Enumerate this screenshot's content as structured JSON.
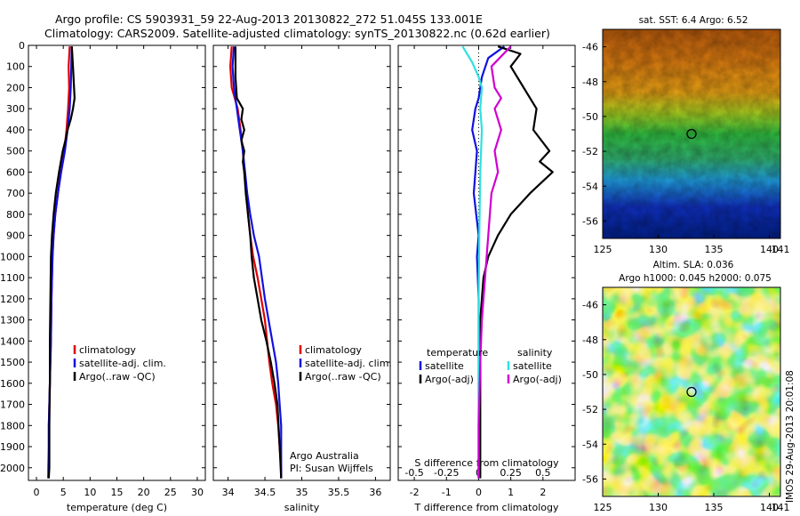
{
  "header": {
    "line1": "Argo profile: CS 5903931_59 22-Aug-2013 20130822_272 51.045S 133.001E",
    "line2": "Climatology: CARS2009. Satellite-adjusted climatology: synTS_20130822.nc (0.62d earlier)"
  },
  "side_stamp": "IMOS 29-Aug-2013 20:01:08",
  "chart_data": [
    {
      "type": "line",
      "id": "temperature",
      "xlabel": "temperature (deg C)",
      "ylabel": "",
      "xlim": [
        -1.5,
        31.5
      ],
      "ylim": [
        2060,
        0
      ],
      "xticks": [
        0,
        5,
        10,
        15,
        20,
        25,
        30
      ],
      "yticks": [
        0,
        100,
        200,
        300,
        400,
        500,
        600,
        700,
        800,
        900,
        1000,
        1100,
        1200,
        1300,
        1400,
        1500,
        1600,
        1700,
        1800,
        1900,
        2000
      ],
      "legend": [
        "climatology",
        "satellite-adj. clim.",
        "Argo(..raw -QC)"
      ],
      "series": [
        {
          "name": "climatology",
          "color": "#e00000",
          "x": [
            6.2,
            6.0,
            6.1,
            5.9,
            5.6,
            5.2,
            4.5,
            4.0,
            3.5,
            3.2,
            3.0,
            2.8,
            2.7,
            2.6,
            2.5,
            2.4,
            2.3,
            2.3,
            2.2,
            2.2
          ],
          "y": [
            5,
            100,
            200,
            300,
            400,
            500,
            600,
            700,
            800,
            900,
            1000,
            1200,
            1400,
            1500,
            1600,
            1700,
            1800,
            1900,
            2000,
            2050
          ]
        },
        {
          "name": "satellite-adj. clim.",
          "color": "#1010e0",
          "x": [
            6.6,
            6.5,
            6.4,
            6.2,
            5.8,
            5.3,
            4.6,
            4.0,
            3.5,
            3.2,
            3.0,
            2.8,
            2.7,
            2.6,
            2.5,
            2.4,
            2.3,
            2.3,
            2.3,
            2.2
          ],
          "y": [
            5,
            100,
            200,
            300,
            400,
            500,
            600,
            700,
            800,
            900,
            1000,
            1200,
            1400,
            1500,
            1600,
            1700,
            1800,
            1900,
            2000,
            2050
          ]
        },
        {
          "name": "Argo(..raw -QC)",
          "color": "#000000",
          "x": [
            6.6,
            6.8,
            7.0,
            7.1,
            6.8,
            6.4,
            5.8,
            5.4,
            4.9,
            4.2,
            3.6,
            3.2,
            2.9,
            2.7,
            2.6,
            2.5,
            2.5,
            2.4,
            2.4,
            2.4,
            2.3
          ],
          "y": [
            5,
            100,
            200,
            250,
            300,
            350,
            400,
            450,
            500,
            600,
            700,
            800,
            900,
            1000,
            1200,
            1400,
            1600,
            1800,
            1900,
            2000,
            2050
          ]
        }
      ]
    },
    {
      "type": "line",
      "id": "salinity",
      "xlabel": "salinity",
      "xlim": [
        33.8,
        36.2
      ],
      "ylim": [
        2060,
        0
      ],
      "xticks": [
        34,
        34.5,
        35,
        35.5,
        36
      ],
      "legend": [
        "climatology",
        "satellite-adj. clim.",
        "Argo(..raw -QC)"
      ],
      "annotation": [
        "Argo Australia",
        "PI: Susan Wijffels"
      ],
      "series": [
        {
          "name": "climatology",
          "color": "#e00000",
          "x": [
            34.05,
            34.03,
            34.05,
            34.13,
            34.17,
            34.2,
            34.22,
            34.25,
            34.27,
            34.3,
            34.34,
            34.4,
            34.5,
            34.56,
            34.6,
            34.65,
            34.68,
            34.7,
            34.72,
            34.72
          ],
          "y": [
            5,
            100,
            200,
            300,
            400,
            500,
            600,
            700,
            800,
            900,
            1000,
            1100,
            1300,
            1500,
            1600,
            1700,
            1800,
            1900,
            2000,
            2050
          ]
        },
        {
          "name": "satellite-adj. clim.",
          "color": "#1010e0",
          "x": [
            34.08,
            34.06,
            34.08,
            34.12,
            34.16,
            34.2,
            34.23,
            34.26,
            34.3,
            34.35,
            34.42,
            34.5,
            34.6,
            34.65,
            34.68,
            34.7,
            34.72,
            34.72
          ],
          "y": [
            5,
            100,
            200,
            300,
            400,
            500,
            600,
            700,
            800,
            900,
            1000,
            1200,
            1400,
            1500,
            1600,
            1700,
            1800,
            2050
          ]
        },
        {
          "name": "Argo(..raw -QC)",
          "color": "#000000",
          "x": [
            34.1,
            34.1,
            34.12,
            34.2,
            34.18,
            34.22,
            34.18,
            34.22,
            34.2,
            34.22,
            34.24,
            34.27,
            34.3,
            34.32,
            34.35,
            34.4,
            34.45,
            34.52,
            34.58,
            34.63,
            34.67,
            34.7,
            34.72
          ],
          "y": [
            5,
            150,
            250,
            300,
            350,
            400,
            450,
            500,
            550,
            600,
            700,
            800,
            900,
            1000,
            1100,
            1200,
            1300,
            1400,
            1500,
            1600,
            1700,
            1900,
            2050
          ]
        }
      ]
    },
    {
      "type": "line",
      "id": "difference",
      "xlabel": "T difference from climatology",
      "xlabel_top": "S difference from climatology",
      "xlim": [
        -2.5,
        3.0
      ],
      "ylim": [
        2060,
        0
      ],
      "xticks": [
        -2,
        -1,
        0,
        1,
        2
      ],
      "xticks_top_labels": [
        "-0.5",
        "-0.25",
        "0",
        "0.25",
        "0.5"
      ],
      "legend_headers": [
        "temperature",
        "salinity"
      ],
      "legend": [
        "satellite",
        "Argo(-adj)",
        "satellite",
        "Argo(-adj)"
      ],
      "series": [
        {
          "name": "temperature satellite",
          "color": "#1010e0",
          "x": [
            0.8,
            0.3,
            0.1,
            0.0,
            -0.1,
            -0.2,
            -0.05,
            -0.1,
            -0.15,
            0.0,
            -0.05,
            0.0,
            0.0,
            0.0,
            0.0,
            0.0
          ],
          "y": [
            5,
            60,
            150,
            250,
            300,
            400,
            500,
            600,
            700,
            900,
            1000,
            1200,
            1400,
            1600,
            1800,
            2050
          ]
        },
        {
          "name": "temperature Argo(-adj)",
          "color": "#000000",
          "x": [
            0.6,
            1.3,
            1.0,
            1.4,
            1.8,
            1.7,
            2.2,
            1.9,
            2.3,
            1.6,
            1.0,
            0.6,
            0.3,
            0.15,
            0.05,
            0.05,
            0.05,
            0.05
          ],
          "y": [
            5,
            40,
            100,
            200,
            300,
            400,
            500,
            550,
            600,
            700,
            800,
            900,
            1000,
            1100,
            1300,
            1500,
            1800,
            2050
          ]
        },
        {
          "name": "salinity satellite",
          "color": "#30e0e0",
          "x": [
            -0.5,
            -0.2,
            0.0,
            0.1,
            0.05,
            0.1,
            0.05,
            0.02,
            0.0,
            0.0,
            0.0
          ],
          "y": [
            5,
            80,
            150,
            200,
            300,
            400,
            600,
            900,
            1200,
            1600,
            2050
          ]
        },
        {
          "name": "salinity Argo(-adj)",
          "color": "#d000d0",
          "x": [
            1.0,
            0.4,
            0.5,
            0.7,
            0.5,
            0.7,
            0.5,
            0.6,
            0.4,
            0.3,
            0.2,
            0.1,
            0.05,
            0.0,
            0.0
          ],
          "y": [
            5,
            100,
            200,
            250,
            300,
            400,
            500,
            600,
            700,
            900,
            1100,
            1300,
            1500,
            1800,
            2050
          ]
        }
      ]
    },
    {
      "type": "heatmap",
      "id": "sst-map",
      "title": "sat. SST: 6.4  Argo: 6.52",
      "xlim": [
        125,
        141
      ],
      "ylim": [
        -57,
        -45
      ],
      "xticks": [
        125,
        130,
        135,
        140
      ],
      "yticks": [
        -46,
        -48,
        -50,
        -52,
        -54,
        -56
      ],
      "marker": {
        "lon": 133.0,
        "lat": -51.0
      }
    },
    {
      "type": "heatmap",
      "id": "sla-map",
      "title_line1": "Altim. SLA: 0.036",
      "title_line2": "Argo h1000: 0.045 h2000: 0.075",
      "xlim": [
        125,
        141
      ],
      "ylim": [
        -57,
        -45
      ],
      "xticks": [
        125,
        130,
        135,
        140
      ],
      "yticks": [
        -46,
        -48,
        -50,
        -52,
        -54,
        -56
      ],
      "marker": {
        "lon": 133.0,
        "lat": -51.0
      }
    }
  ]
}
